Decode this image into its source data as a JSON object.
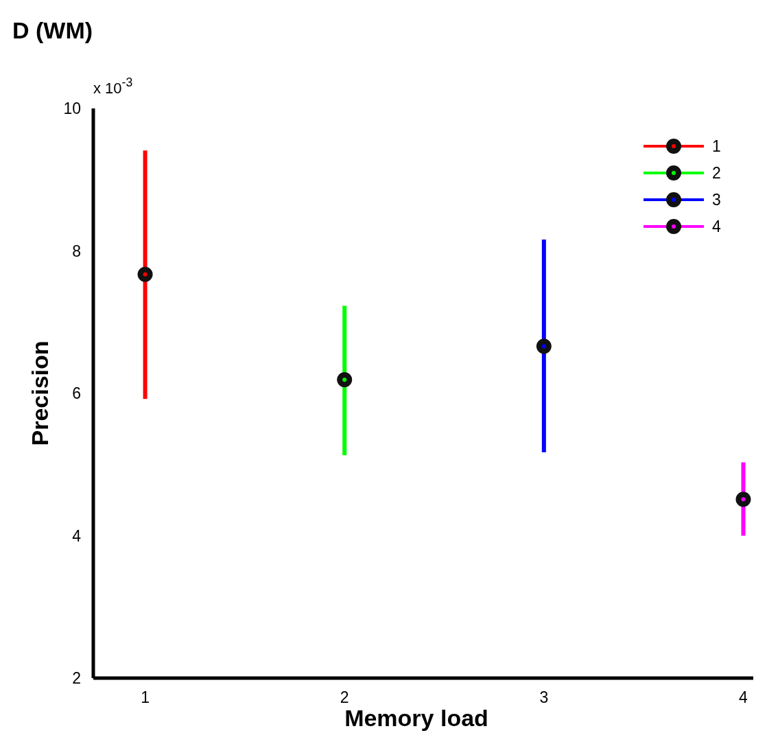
{
  "chart_data": {
    "type": "scatter",
    "title": "D (WM)",
    "xlabel": "Memory load",
    "ylabel": "Precision",
    "annotations": [
      "x 10$^{-3}$"
    ],
    "xlim": [
      0.74,
      4.05
    ],
    "xticks": [
      1,
      2,
      3,
      4
    ],
    "ylim": [
      2,
      10
    ],
    "yticks": [
      2,
      4,
      6,
      8,
      10
    ],
    "grid": false,
    "legend": "top right",
    "marker": "circle",
    "series": [
      {
        "name": "1",
        "color": "#ff0000",
        "x": [
          1
        ],
        "values": [
          7.67
        ],
        "errors": [
          [
            5.92,
            9.41
          ]
        ]
      },
      {
        "name": "2",
        "color": "#00ff00",
        "x": [
          2
        ],
        "values": [
          6.19
        ],
        "errors": [
          [
            5.13,
            7.23
          ]
        ]
      },
      {
        "name": "3",
        "color": "#0000ff",
        "x": [
          3
        ],
        "values": [
          6.66
        ],
        "errors": [
          [
            5.17,
            8.16
          ]
        ]
      },
      {
        "name": "4",
        "color": "#ff00ff",
        "x": [
          4
        ],
        "values": [
          4.51
        ],
        "errors": [
          [
            4.0,
            5.03
          ]
        ]
      }
    ]
  }
}
